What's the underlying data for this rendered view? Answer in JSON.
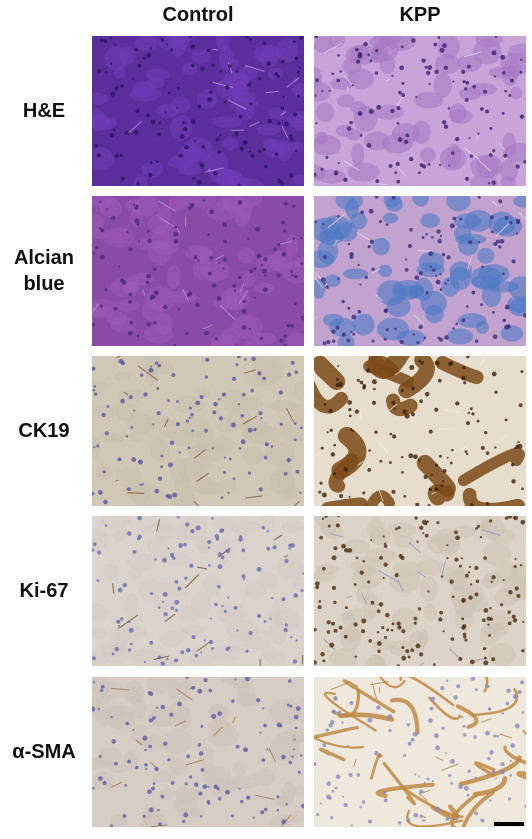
{
  "columns": [
    "Control",
    "KPP"
  ],
  "rows": [
    {
      "label_lines": [
        "H&E"
      ],
      "control_palette": {
        "bg": "#5a2f9c",
        "cell": "#6e3cb5",
        "nucleus": "#2a1463",
        "line": "#c9a6e6"
      },
      "kpp_palette": {
        "bg": "#c8a4d8",
        "cell": "#a77cc4",
        "nucleus": "#3b2270",
        "line": "#e9dff0"
      }
    },
    {
      "label_lines": [
        "Alcian",
        "blue"
      ],
      "control_palette": {
        "bg": "#8a4aa8",
        "cell": "#9c5ab8",
        "nucleus": "#4a2a7a",
        "line": "#c7a0d6"
      },
      "kpp_palette": {
        "bg": "#c2a2cf",
        "cell": "#4d79c4",
        "nucleus": "#3a2d7a",
        "line": "#e8e4ee"
      }
    },
    {
      "label_lines": [
        "CK19"
      ],
      "control_palette": {
        "bg": "#d2c8b8",
        "cell": "#c9bfae",
        "nucleus": "#5a58a0",
        "line": "#6b4214"
      },
      "kpp_palette": {
        "bg": "#e6ddcc",
        "cell": "#7a4a18",
        "nucleus": "#3a200a",
        "line": "#f3efe6"
      }
    },
    {
      "label_lines": [
        "Ki-67"
      ],
      "control_palette": {
        "bg": "#dbd4cc",
        "cell": "#d3ccc4",
        "nucleus": "#6a6ab4",
        "line": "#5a3a14"
      },
      "kpp_palette": {
        "bg": "#ddd4c8",
        "cell": "#cfc4b6",
        "nucleus": "#4a2a0e",
        "line": "#8a8ac4"
      }
    },
    {
      "label_lines": [
        "α-SMA"
      ],
      "control_palette": {
        "bg": "#d6cdc5",
        "cell": "#cdc3bb",
        "nucleus": "#5e5ea6",
        "line": "#9a6a2e"
      },
      "kpp_palette": {
        "bg": "#efe8dc",
        "cell": "#c08a44",
        "nucleus": "#8a8ac0",
        "line": "#a6732c"
      }
    }
  ]
}
